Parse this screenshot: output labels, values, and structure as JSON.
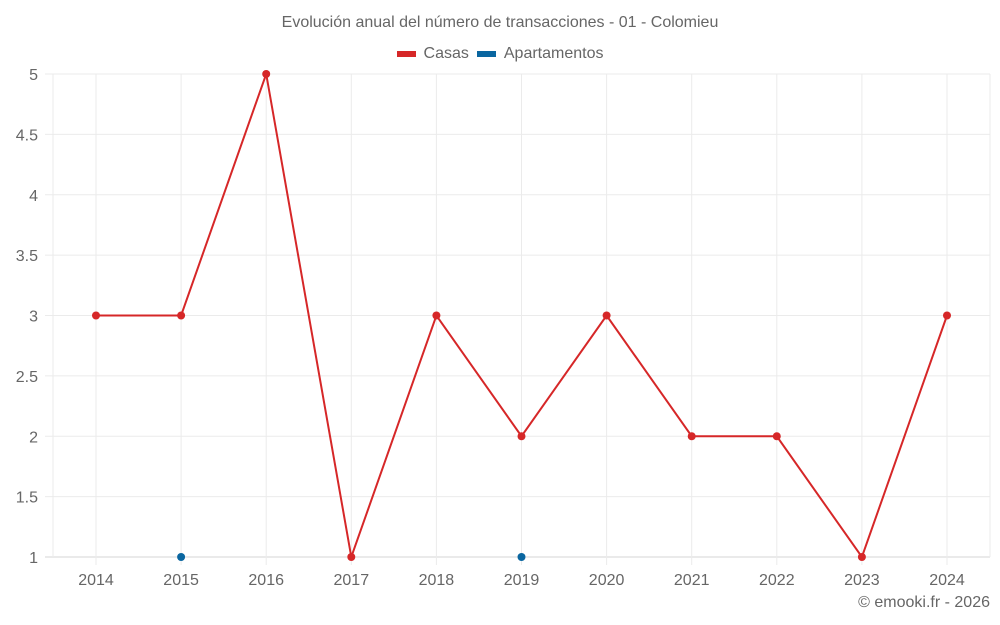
{
  "title": "Evolución anual del número de transacciones - 01 - Colomieu",
  "legend": [
    {
      "label": "Casas",
      "color": "#d62728"
    },
    {
      "label": "Apartamentos",
      "color": "#0a66a0"
    }
  ],
  "footer": "© emooki.fr - 2026",
  "chart_data": {
    "type": "line",
    "title": "Evolución anual del número de transacciones - 01 - Colomieu",
    "xlabel": "",
    "ylabel": "",
    "x": [
      2014,
      2015,
      2016,
      2017,
      2018,
      2019,
      2020,
      2021,
      2022,
      2023,
      2024
    ],
    "series": [
      {
        "name": "Casas",
        "color": "#d62728",
        "values": [
          3,
          3,
          5,
          1,
          3,
          2,
          3,
          2,
          2,
          1,
          3
        ]
      },
      {
        "name": "Apartamentos",
        "color": "#0a66a0",
        "values": [
          null,
          1,
          null,
          null,
          null,
          1,
          null,
          null,
          null,
          null,
          null
        ]
      }
    ],
    "ylim": [
      1,
      5
    ],
    "yticks": [
      "1",
      "1.5",
      "2",
      "2.5",
      "3",
      "3.5",
      "4",
      "4.5",
      "5"
    ],
    "xticks": [
      "2014",
      "2015",
      "2016",
      "2017",
      "2018",
      "2019",
      "2020",
      "2021",
      "2022",
      "2023",
      "2024"
    ],
    "grid": true,
    "legend_position": "top"
  }
}
